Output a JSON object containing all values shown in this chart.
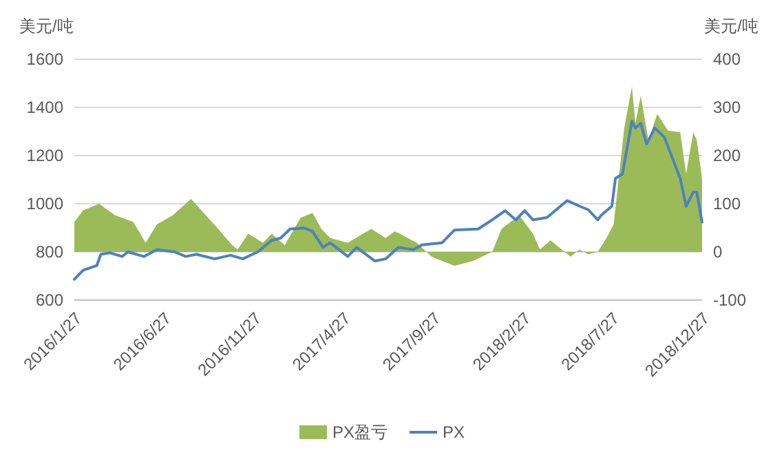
{
  "chart_data": {
    "type": "line",
    "ylabel": "美元/吨",
    "y2label": "美元/吨",
    "xlim": [
      "2016-01-27",
      "2018-12-27"
    ],
    "xticks": [
      {
        "value": "2016-01-27",
        "label": "2016/1/27"
      },
      {
        "value": "2016-06-27",
        "label": "2016/6/27"
      },
      {
        "value": "2016-11-27",
        "label": "2016/11/27"
      },
      {
        "value": "2017-04-27",
        "label": "2017/4/27"
      },
      {
        "value": "2017-09-27",
        "label": "2017/9/27"
      },
      {
        "value": "2018-02-27",
        "label": "2018/2/27"
      },
      {
        "value": "2018-07-27",
        "label": "2018/7/27"
      },
      {
        "value": "2018-12-27",
        "label": "2018/12/27"
      }
    ],
    "ylim": [
      600,
      1600
    ],
    "yticks": [
      600,
      800,
      1000,
      1200,
      1400,
      1600
    ],
    "y2lim": [
      -100,
      400
    ],
    "y2ticks": [
      -100,
      0,
      100,
      200,
      300,
      400
    ],
    "grid": "y",
    "legend": "bottom",
    "series": [
      {
        "name": "PX盈亏",
        "type": "area",
        "axis": "y2",
        "color": "#9bbb59",
        "x": [
          "2016-01-27",
          "2016-02-11",
          "2016-03-09",
          "2016-04-05",
          "2016-05-06",
          "2016-05-27",
          "2016-06-15",
          "2016-07-12",
          "2016-08-12",
          "2016-09-06",
          "2016-09-27",
          "2016-10-21",
          "2016-10-30",
          "2016-11-17",
          "2016-12-12",
          "2016-12-27",
          "2017-01-18",
          "2017-02-14",
          "2017-03-06",
          "2017-03-21",
          "2017-04-05",
          "2017-05-05",
          "2017-06-14",
          "2017-07-08",
          "2017-07-24",
          "2017-08-30",
          "2017-09-24",
          "2017-11-02",
          "2017-12-03",
          "2018-01-05",
          "2018-01-21",
          "2018-02-20",
          "2018-03-15",
          "2018-03-27",
          "2018-04-14",
          "2018-05-18",
          "2018-06-02",
          "2018-06-17",
          "2018-07-03",
          "2018-07-18",
          "2018-07-30",
          "2018-08-17",
          "2018-08-30",
          "2018-09-05",
          "2018-09-14",
          "2018-09-27",
          "2018-10-12",
          "2018-10-30",
          "2018-11-20",
          "2018-11-30",
          "2018-12-12",
          "2018-12-18",
          "2018-12-27"
        ],
        "values": [
          62,
          86,
          100,
          76,
          62,
          19,
          57,
          76,
          110,
          76,
          48,
          14,
          5,
          38,
          19,
          38,
          14,
          71,
          81,
          48,
          29,
          19,
          48,
          29,
          43,
          19,
          -10,
          -29,
          -19,
          0,
          48,
          76,
          38,
          5,
          24,
          -10,
          5,
          -5,
          0,
          29,
          57,
          257,
          343,
          267,
          324,
          233,
          286,
          252,
          248,
          162,
          248,
          233,
          152
        ]
      },
      {
        "name": "PX",
        "axis": "y",
        "color": "#4f81bd",
        "x": [
          "2016-01-27",
          "2016-02-11",
          "2016-03-05",
          "2016-03-12",
          "2016-03-27",
          "2016-04-17",
          "2016-04-27",
          "2016-05-24",
          "2016-06-15",
          "2016-07-15",
          "2016-08-03",
          "2016-08-21",
          "2016-09-21",
          "2016-10-18",
          "2016-11-08",
          "2016-12-03",
          "2016-12-27",
          "2017-01-11",
          "2017-01-27",
          "2017-02-20",
          "2017-03-06",
          "2017-03-24",
          "2017-04-05",
          "2017-05-05",
          "2017-05-20",
          "2017-06-20",
          "2017-07-08",
          "2017-07-30",
          "2017-08-24",
          "2017-09-08",
          "2017-10-12",
          "2017-11-02",
          "2017-12-12",
          "2018-01-05",
          "2018-01-27",
          "2018-02-14",
          "2018-03-01",
          "2018-03-15",
          "2018-04-08",
          "2018-05-12",
          "2018-06-02",
          "2018-06-17",
          "2018-07-03",
          "2018-07-09",
          "2018-07-27",
          "2018-08-02",
          "2018-08-14",
          "2018-08-30",
          "2018-09-05",
          "2018-09-14",
          "2018-09-24",
          "2018-10-08",
          "2018-10-24",
          "2018-11-08",
          "2018-11-20",
          "2018-11-30",
          "2018-12-12",
          "2018-12-18",
          "2018-12-27"
        ],
        "values": [
          686,
          724,
          743,
          790,
          796,
          781,
          800,
          781,
          809,
          800,
          781,
          790,
          771,
          786,
          771,
          800,
          848,
          857,
          895,
          899,
          886,
          819,
          838,
          781,
          819,
          762,
          771,
          819,
          809,
          829,
          838,
          891,
          895,
          933,
          971,
          933,
          971,
          933,
          943,
          1013,
          990,
          975,
          933,
          952,
          990,
          1105,
          1124,
          1343,
          1314,
          1333,
          1248,
          1314,
          1276,
          1181,
          1105,
          990,
          1048,
          1048,
          924
        ]
      }
    ]
  }
}
